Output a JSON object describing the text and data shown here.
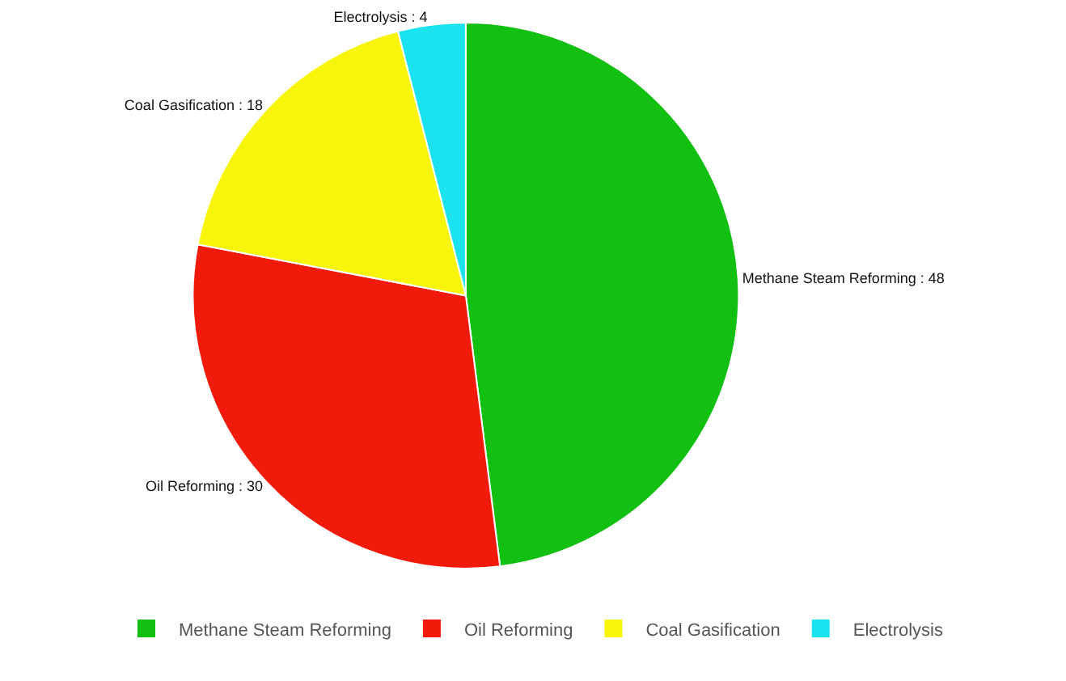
{
  "chart_data": {
    "type": "pie",
    "categories": [
      "Methane Steam Reforming",
      "Oil Reforming",
      "Coal Gasification",
      "Electrolysis"
    ],
    "values": [
      48,
      30,
      18,
      4
    ],
    "colors": [
      "#11c011",
      "#f21a0a",
      "#f8f50a",
      "#1ae3ef"
    ],
    "value_labels": [
      "Methane Steam Reforming : 48",
      "Oil Reforming : 30",
      "Coal Gasification : 18",
      "Electrolysis : 4"
    ],
    "legend": "bottom"
  }
}
